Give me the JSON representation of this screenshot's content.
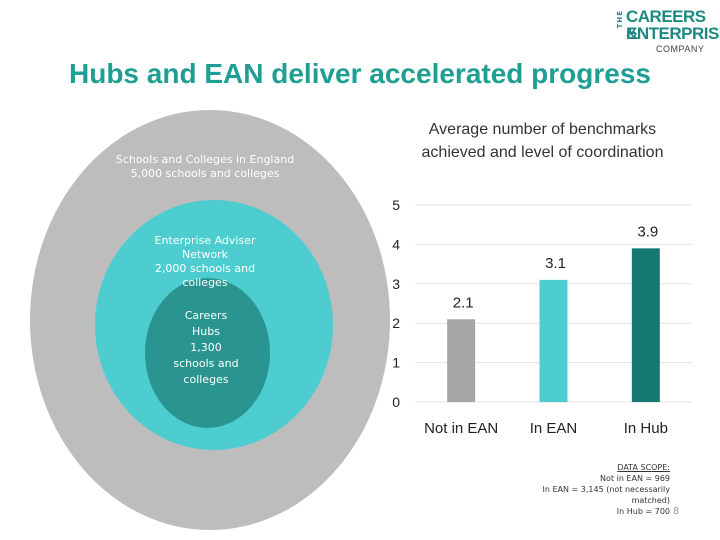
{
  "logo": {
    "the": "THE",
    "line1": "CAREERS &",
    "line2": "ENTERPRISE",
    "line3": "COMPANY"
  },
  "title": "Hubs and EAN deliver accelerated progress",
  "circles": {
    "outer": {
      "line1": "Schools and Colleges in England",
      "line2": "5,000 schools and colleges"
    },
    "middle": {
      "lines": [
        "Enterprise Adviser",
        "Network",
        "2,000 schools and",
        "colleges"
      ]
    },
    "inner": {
      "lines": [
        "Careers",
        "Hubs",
        "1,300",
        "schools and",
        "colleges"
      ]
    }
  },
  "chart_data": {
    "type": "bar",
    "title": "Average number of benchmarks achieved and level of coordination",
    "categories": [
      "Not in EAN",
      "In EAN",
      "In Hub"
    ],
    "values": [
      2.1,
      3.1,
      3.9
    ],
    "value_labels": [
      "2.1",
      "3.1",
      "3.9"
    ],
    "colors": [
      "#a6a6a6",
      "#4ecdd1",
      "#167a72"
    ],
    "ylim": [
      0,
      5
    ],
    "yticks": [
      "0",
      "1",
      "2",
      "3",
      "4",
      "5"
    ],
    "grid": true,
    "xlabel": "",
    "ylabel": ""
  },
  "scope": {
    "header": "DATA SCOPE:",
    "lines": [
      "Not in EAN = 969",
      "In EAN = 3,145 (not necessarily",
      "matched)",
      "In Hub = 700"
    ]
  },
  "page_number": "8"
}
